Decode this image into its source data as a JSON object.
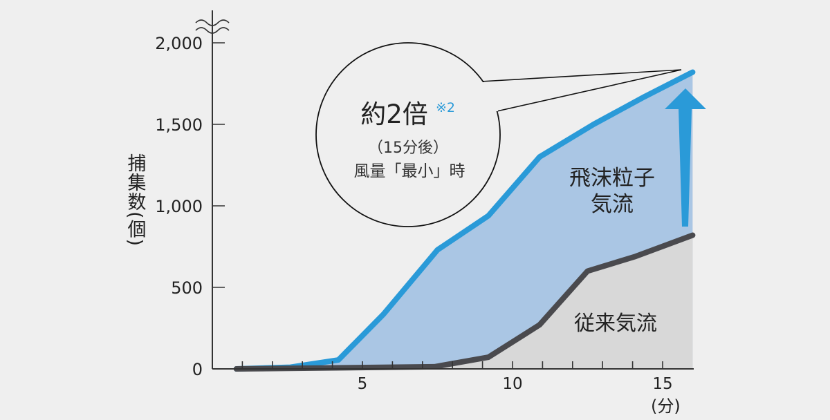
{
  "chart_data": {
    "type": "area",
    "ylabel": "捕集数(個)",
    "xlabel": "(分)",
    "xlim": [
      0,
      16
    ],
    "ylim": [
      0,
      2000
    ],
    "y_axis_break": true,
    "grid": false,
    "xticks": [
      5,
      10,
      15
    ],
    "xtick_labels": [
      "5",
      "10",
      "15"
    ],
    "yticks": [
      0,
      500,
      1000,
      1500,
      2000
    ],
    "ytick_labels": [
      "0",
      "500",
      "1,000",
      "1,500",
      "2,000"
    ],
    "series": [
      {
        "name": "飛沫粒子気流",
        "label_lines": [
          "飛沫粒子",
          "気流"
        ],
        "color": "#2a9ad8",
        "fill": "#aac6e4",
        "x": [
          0.8,
          2.6,
          4.2,
          5.7,
          7.5,
          9.2,
          10.9,
          12.7,
          14.4,
          16
        ],
        "y": [
          0,
          10,
          55,
          335,
          730,
          940,
          1300,
          1500,
          1670,
          1820
        ]
      },
      {
        "name": "従来気流",
        "label_lines": [
          "従来気流"
        ],
        "color": "#4a4a4e",
        "fill": "#d8d8d8",
        "x": [
          0.8,
          7.4,
          9.2,
          10.9,
          12.5,
          14.1,
          16
        ],
        "y": [
          0,
          13,
          72,
          270,
          600,
          690,
          820
        ]
      }
    ],
    "annotation": {
      "main": "約2倍",
      "note": "※2",
      "line2": "（15分後）",
      "line3": "風量「最小」時",
      "note_color": "#2a9ad8"
    },
    "arrow_color": "#2a9ad8"
  }
}
